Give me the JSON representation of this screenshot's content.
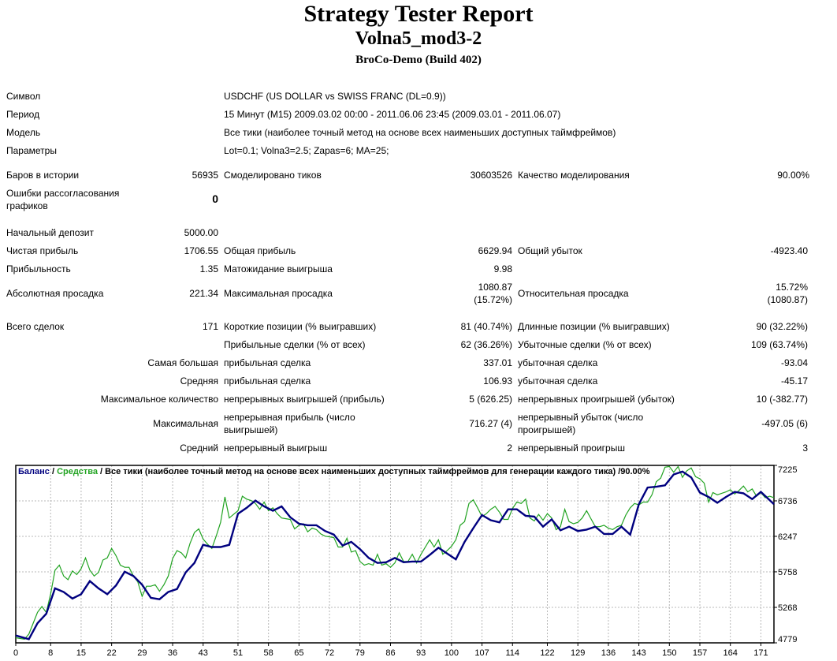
{
  "header": {
    "title": "Strategy Tester Report",
    "subtitle": "Volna5_mod3-2",
    "build": "BroCo-Demo (Build 402)"
  },
  "info": {
    "symbol_label": "Символ",
    "symbol_value": "USDCHF (US DOLLAR vs SWISS FRANC (DL=0.9))",
    "period_label": "Период",
    "period_value": "15 Минут (M15) 2009.03.02 00:00 - 2011.06.06 23:45 (2009.03.01 - 2011.06.07)",
    "model_label": "Модель",
    "model_value": "Все тики (наиболее точный метод на основе всех наименьших доступных таймфреймов)",
    "params_label": "Параметры",
    "params_value": "Lot=0.1; Volna3=2.5; Zapas=6; MA=25;"
  },
  "stats": {
    "bars_label": "Баров в истории",
    "bars_value": "56935",
    "ticks_label": "Смоделировано тиков",
    "ticks_value": "30603526",
    "quality_label": "Качество моделирования",
    "quality_value": "90.00%",
    "mismatch_label": "Ошибки рассогласования графиков",
    "mismatch_value": "0",
    "deposit_label": "Начальный депозит",
    "deposit_value": "5000.00",
    "net_label": "Чистая прибыль",
    "net_value": "1706.55",
    "gross_profit_label": "Общая прибыль",
    "gross_profit_value": "6629.94",
    "gross_loss_label": "Общий убыток",
    "gross_loss_value": "-4923.40",
    "pf_label": "Прибыльность",
    "pf_value": "1.35",
    "expect_label": "Матожидание выигрыша",
    "expect_value": "9.98",
    "abs_dd_label": "Абсолютная просадка",
    "abs_dd_value": "221.34",
    "max_dd_label": "Максимальная просадка",
    "max_dd_value1": "1080.87",
    "max_dd_value2": "(15.72%)",
    "rel_dd_label": "Относительная просадка",
    "rel_dd_value1": "15.72%",
    "rel_dd_value2": "(1080.87)",
    "trades_label": "Всего сделок",
    "trades_value": "171",
    "short_label": "Короткие позиции (% выигравших)",
    "short_value": "81 (40.74%)",
    "long_label": "Длинные позиции (% выигравших)",
    "long_value": "90 (32.22%)",
    "profit_trades_label": "Прибыльные сделки (% от всех)",
    "profit_trades_value": "62 (36.26%)",
    "loss_trades_label": "Убыточные сделки (% от всех)",
    "loss_trades_value": "109 (63.74%)",
    "largest_label": "Самая большая",
    "largest_profit_label": "прибыльная сделка",
    "largest_profit_value": "337.01",
    "largest_loss_label": "убыточная сделка",
    "largest_loss_value": "-93.04",
    "average_label": "Средняя",
    "average_profit_label": "прибыльная сделка",
    "average_profit_value": "106.93",
    "average_loss_label": "убыточная сделка",
    "average_loss_value": "-45.17",
    "max_count_label": "Максимальное количество",
    "max_cons_wins_label": "непрерывных выигрышей (прибыль)",
    "max_cons_wins_value": "5 (626.25)",
    "max_cons_losses_label": "непрерывных проигрышей (убыток)",
    "max_cons_losses_value": "10 (-382.77)",
    "maximal_label": "Максимальная",
    "maximal_profit_label": "непрерывная прибыль (число выигрышей)",
    "maximal_profit_value": "716.27 (4)",
    "maximal_loss_label": "непрерывный убыток (число проигрышей)",
    "maximal_loss_value": "-497.05 (6)",
    "avg_cons_label": "Средний",
    "avg_cons_wins_label": "непрерывный выигрыш",
    "avg_cons_wins_value": "2",
    "avg_cons_losses_label": "непрерывный проигрыш",
    "avg_cons_losses_value": "3"
  },
  "chart_data": {
    "type": "line",
    "legend": {
      "balance": "Баланс",
      "sep1": " / ",
      "equity": "Средства",
      "rest": " / Все тики (наиболее точный метод на основе всех наименьших доступных таймфреймов для генерации каждого тика) /90.00%"
    },
    "colors": {
      "balance": "#00007f",
      "equity": "#21a321"
    },
    "ylim": [
      4779,
      7225
    ],
    "y_ticks": [
      4779,
      5268,
      5758,
      6247,
      6736,
      7225
    ],
    "xlim": [
      0,
      174
    ],
    "x_ticks": [
      0,
      8,
      15,
      22,
      29,
      36,
      43,
      51,
      58,
      65,
      72,
      79,
      86,
      93,
      100,
      107,
      114,
      122,
      129,
      136,
      143,
      150,
      157,
      164,
      171
    ],
    "series": [
      {
        "name": "Баланс",
        "x": [
          0,
          3,
          5,
          7,
          9,
          11,
          13,
          15,
          17,
          19,
          21,
          23,
          25,
          27,
          29,
          31,
          33,
          35,
          37,
          39,
          41,
          43,
          45,
          47,
          49,
          51,
          53,
          55,
          57,
          59,
          61,
          63,
          65,
          67,
          69,
          71,
          73,
          75,
          77,
          79,
          81,
          83,
          85,
          87,
          89,
          91,
          93,
          95,
          97,
          99,
          101,
          103,
          105,
          107,
          109,
          111,
          113,
          115,
          117,
          119,
          121,
          123,
          125,
          127,
          129,
          131,
          133,
          135,
          137,
          139,
          141,
          143,
          145,
          147,
          149,
          151,
          153,
          155,
          157,
          159,
          161,
          163,
          165,
          167,
          169,
          171,
          174
        ],
        "values": [
          4880,
          4830,
          5050,
          5180,
          5530,
          5480,
          5390,
          5450,
          5630,
          5530,
          5450,
          5570,
          5760,
          5700,
          5580,
          5400,
          5380,
          5480,
          5520,
          5750,
          5880,
          6130,
          6100,
          6100,
          6130,
          6560,
          6640,
          6740,
          6660,
          6600,
          6660,
          6510,
          6420,
          6400,
          6400,
          6320,
          6270,
          6120,
          6170,
          6070,
          5950,
          5880,
          5890,
          5950,
          5890,
          5900,
          5900,
          5990,
          6090,
          6010,
          5930,
          6170,
          6360,
          6540,
          6470,
          6440,
          6620,
          6620,
          6530,
          6520,
          6380,
          6480,
          6330,
          6380,
          6320,
          6340,
          6380,
          6280,
          6280,
          6380,
          6270,
          6690,
          6920,
          6930,
          6950,
          7100,
          7140,
          7060,
          6850,
          6790,
          6710,
          6790,
          6860,
          6840,
          6760,
          6860,
          6690
        ]
      },
      {
        "name": "Средства",
        "x": [
          0,
          2,
          3,
          4,
          5,
          6,
          7,
          8,
          9,
          10,
          11,
          12,
          13,
          14,
          15,
          16,
          17,
          18,
          19,
          20,
          21,
          22,
          23,
          24,
          25,
          26,
          27,
          28,
          29,
          30,
          31,
          32,
          33,
          34,
          35,
          36,
          37,
          38,
          39,
          40,
          41,
          42,
          43,
          44,
          45,
          46,
          47,
          48,
          49,
          50,
          51,
          52,
          53,
          54,
          55,
          56,
          57,
          58,
          59,
          60,
          61,
          62,
          63,
          64,
          65,
          66,
          67,
          68,
          69,
          70,
          71,
          72,
          73,
          74,
          75,
          76,
          77,
          78,
          79,
          80,
          81,
          82,
          83,
          84,
          85,
          86,
          87,
          88,
          89,
          90,
          91,
          92,
          93,
          94,
          95,
          96,
          97,
          98,
          99,
          100,
          101,
          102,
          103,
          104,
          105,
          106,
          107,
          108,
          109,
          110,
          111,
          112,
          113,
          114,
          115,
          116,
          117,
          118,
          119,
          120,
          121,
          122,
          123,
          124,
          125,
          126,
          127,
          128,
          129,
          130,
          131,
          132,
          133,
          134,
          135,
          136,
          137,
          138,
          139,
          140,
          141,
          142,
          143,
          144,
          145,
          146,
          147,
          148,
          149,
          150,
          151,
          152,
          153,
          154,
          155,
          156,
          157,
          158,
          159,
          160,
          161,
          162,
          163,
          164,
          165,
          166,
          167,
          168,
          169,
          170,
          171,
          172,
          173,
          174
        ],
        "values": [
          4850,
          4830,
          4900,
          5050,
          5200,
          5280,
          5200,
          5450,
          5780,
          5850,
          5700,
          5650,
          5770,
          5720,
          5800,
          5950,
          5780,
          5700,
          5750,
          5920,
          5950,
          6080,
          5980,
          5850,
          5820,
          5820,
          5700,
          5620,
          5420,
          5560,
          5560,
          5580,
          5490,
          5580,
          5700,
          5940,
          6050,
          6020,
          5950,
          6150,
          6300,
          6350,
          6210,
          6140,
          6080,
          6250,
          6440,
          6790,
          6500,
          6550,
          6600,
          6800,
          6760,
          6740,
          6700,
          6620,
          6720,
          6600,
          6640,
          6560,
          6500,
          6490,
          6480,
          6350,
          6400,
          6420,
          6310,
          6360,
          6340,
          6280,
          6250,
          6240,
          6230,
          6100,
          6100,
          6220,
          6030,
          6050,
          5900,
          5850,
          5870,
          5850,
          6000,
          5850,
          5870,
          5820,
          5880,
          6020,
          5900,
          5900,
          6000,
          5880,
          6000,
          6100,
          6200,
          6100,
          6200,
          6000,
          6050,
          6110,
          6200,
          6400,
          6450,
          6700,
          6750,
          6640,
          6520,
          6560,
          6620,
          6660,
          6580,
          6480,
          6480,
          6630,
          6720,
          6700,
          6760,
          6500,
          6460,
          6550,
          6470,
          6560,
          6500,
          6340,
          6380,
          6620,
          6450,
          6420,
          6440,
          6500,
          6600,
          6490,
          6380,
          6380,
          6400,
          6360,
          6340,
          6380,
          6400,
          6540,
          6640,
          6700,
          6680,
          6720,
          6720,
          6820,
          7000,
          7050,
          7200,
          7210,
          7130,
          7210,
          7060,
          7150,
          7190,
          7070,
          7040,
          6980,
          6720,
          6850,
          6820,
          6840,
          6860,
          6890,
          6830,
          6880,
          6940,
          6860,
          6900,
          6800,
          6850,
          6780,
          6800,
          6780
        ]
      }
    ]
  }
}
